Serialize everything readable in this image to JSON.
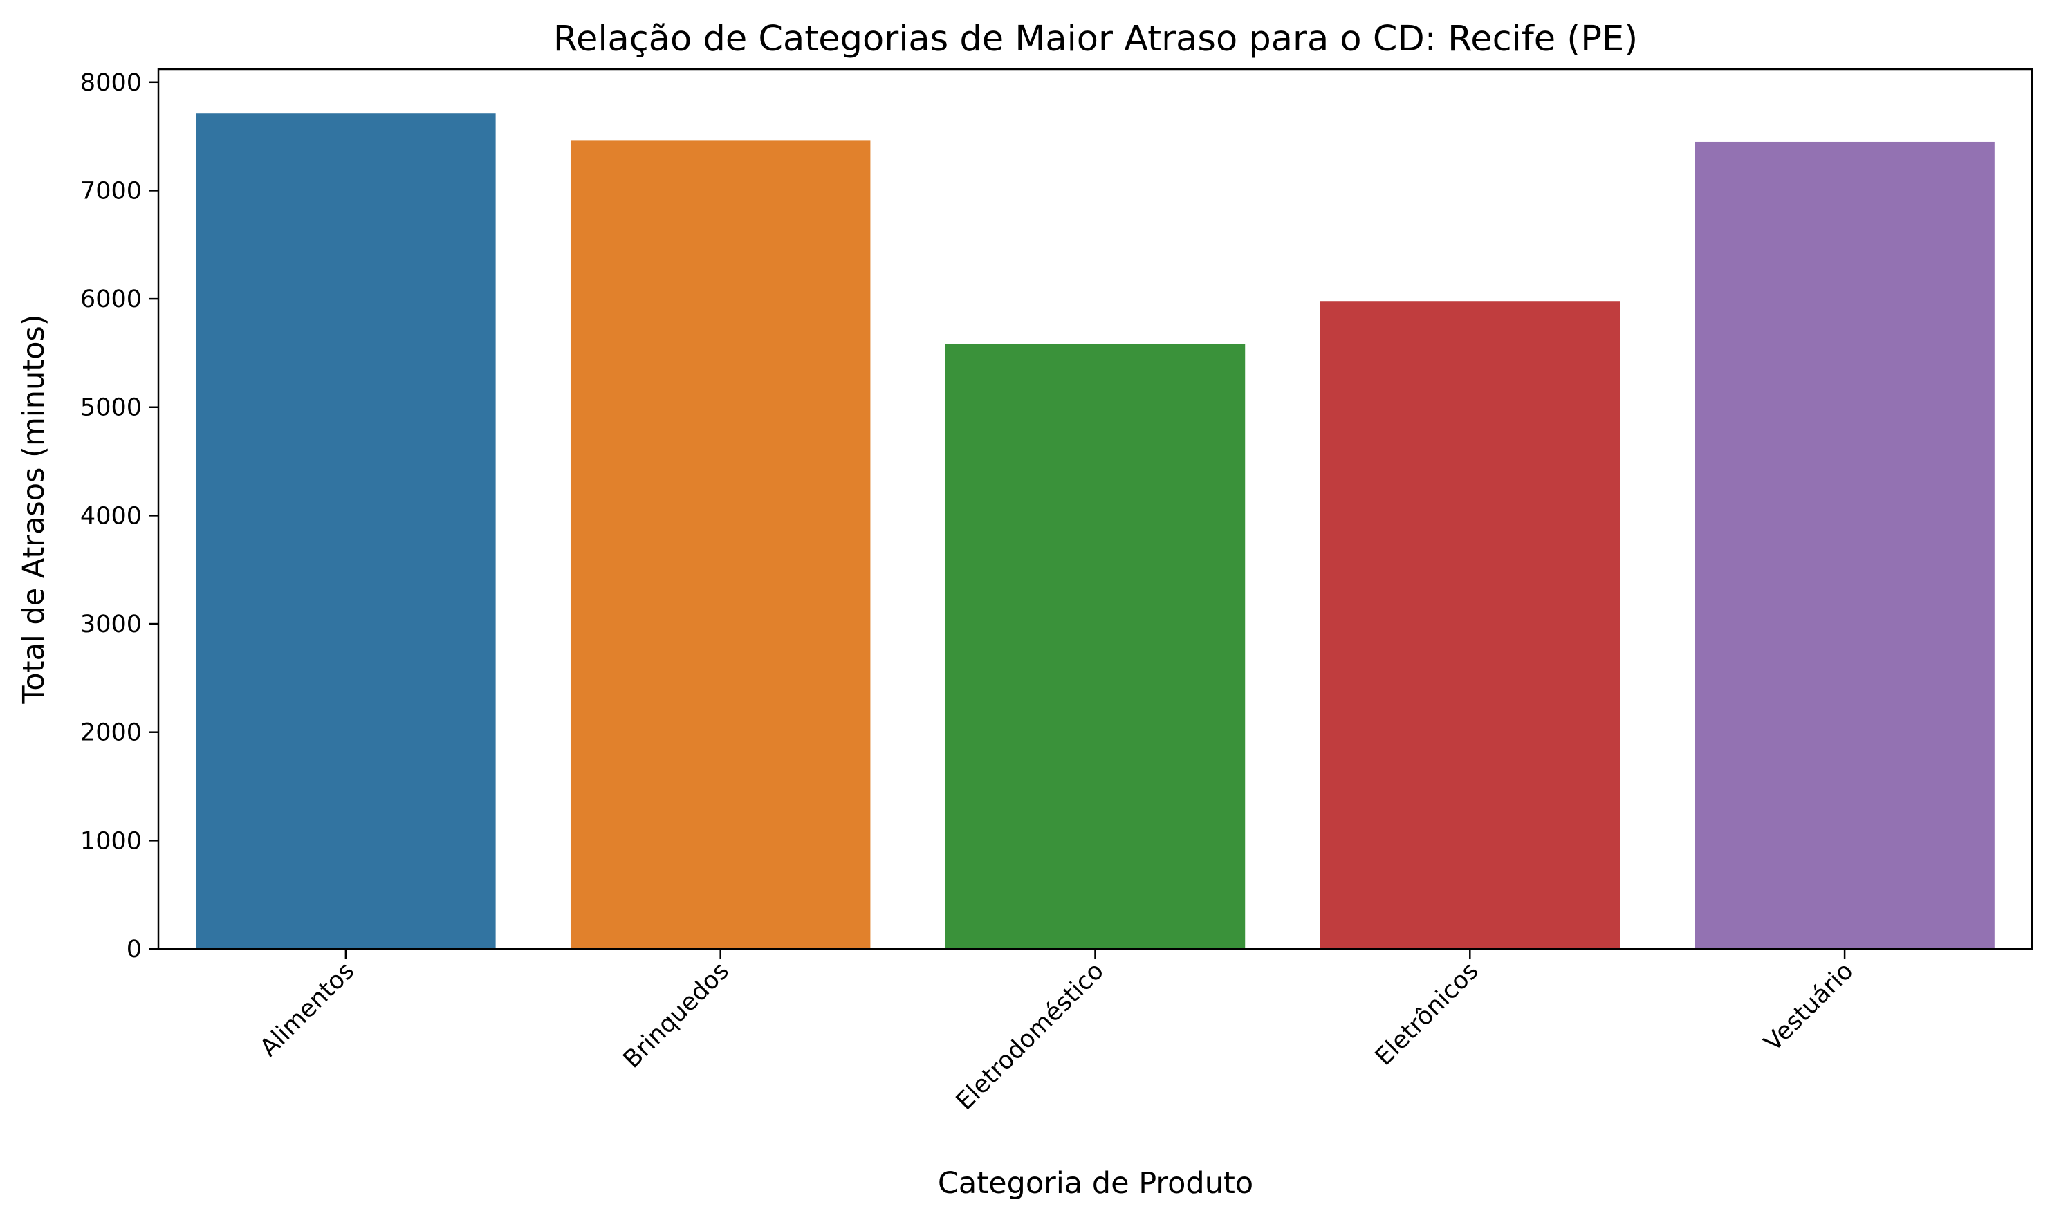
{
  "chart_data": {
    "type": "bar",
    "title": "Relação de Categorias de Maior Atraso para o CD: Recife (PE)",
    "xlabel": "Categoria de Produto",
    "ylabel": "Total de Atrasos (minutos)",
    "categories": [
      "Alimentos",
      "Brinquedos",
      "Eletrodoméstico",
      "Eletrônicos",
      "Vestuário"
    ],
    "values": [
      7710,
      7460,
      5580,
      5980,
      7450
    ],
    "colors": [
      "#3274a1",
      "#e1812c",
      "#3a923a",
      "#c03d3e",
      "#9372b2"
    ],
    "ylim": [
      0,
      8120
    ],
    "yticks": [
      0,
      1000,
      2000,
      3000,
      4000,
      5000,
      6000,
      7000,
      8000
    ],
    "grid": false,
    "legend": "none"
  }
}
